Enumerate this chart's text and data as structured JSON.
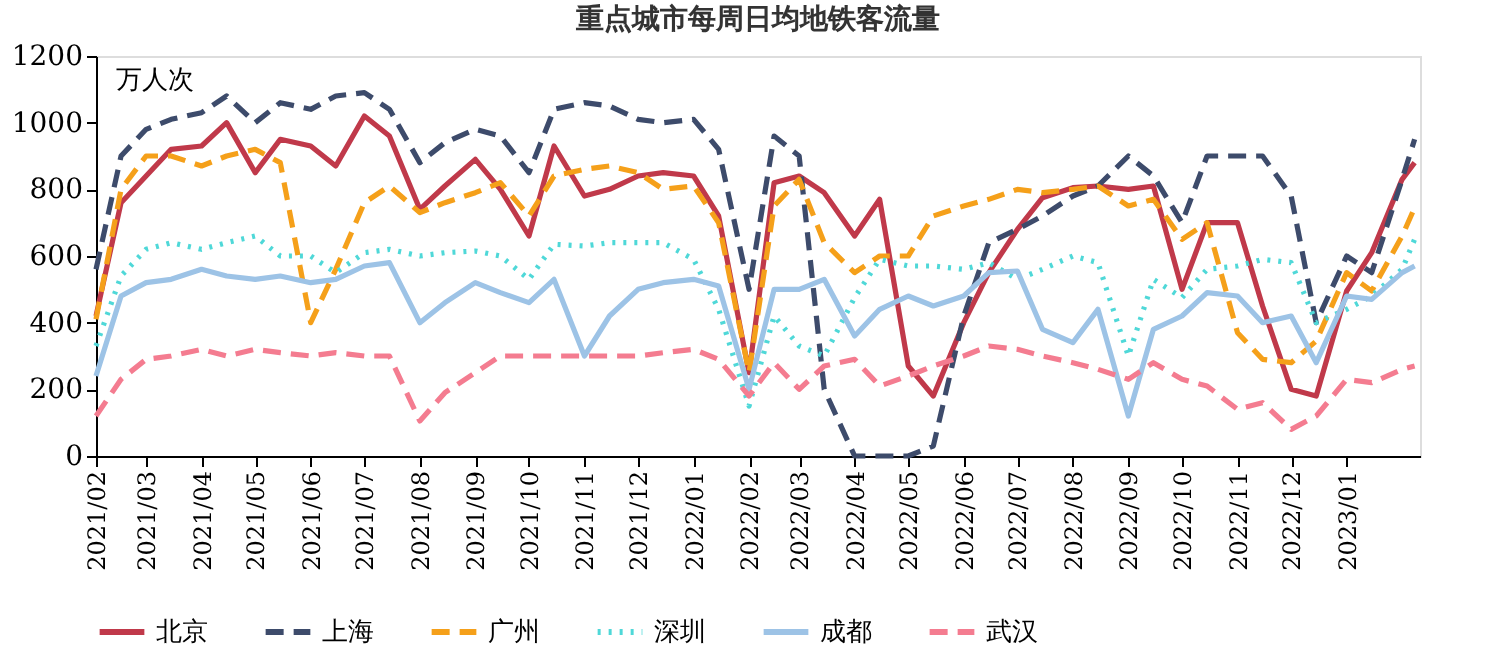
{
  "chart_data": {
    "type": "line",
    "title": "重点城市每周日均地铁客流量",
    "ylabel": "万人次",
    "x": [
      "2021-02-01",
      "2021-02-15",
      "2021-03-01",
      "2021-03-15",
      "2021-04-01",
      "2021-04-15",
      "2021-05-01",
      "2021-05-15",
      "2021-06-01",
      "2021-06-15",
      "2021-07-01",
      "2021-07-15",
      "2021-08-01",
      "2021-08-15",
      "2021-09-01",
      "2021-09-15",
      "2021-10-01",
      "2021-10-15",
      "2021-11-01",
      "2021-11-15",
      "2021-12-01",
      "2021-12-15",
      "2022-01-01",
      "2022-01-15",
      "2022-02-01",
      "2022-02-15",
      "2022-03-01",
      "2022-03-15",
      "2022-04-01",
      "2022-04-15",
      "2022-05-01",
      "2022-05-15",
      "2022-06-01",
      "2022-06-15",
      "2022-07-01",
      "2022-07-15",
      "2022-08-01",
      "2022-08-15",
      "2022-09-01",
      "2022-09-15",
      "2022-10-01",
      "2022-10-15",
      "2022-11-01",
      "2022-11-15",
      "2022-12-01",
      "2022-12-15",
      "2023-01-01",
      "2023-01-15",
      "2023-02-01",
      "2023-02-08"
    ],
    "series": [
      {
        "name": "北京",
        "color": "#c0394a",
        "line_style": "solid",
        "values": [
          420,
          760,
          840,
          920,
          930,
          1000,
          850,
          950,
          930,
          870,
          1020,
          960,
          740,
          810,
          890,
          800,
          660,
          930,
          780,
          800,
          840,
          850,
          840,
          720,
          250,
          820,
          840,
          790,
          660,
          770,
          270,
          180,
          400,
          550,
          680,
          775,
          805,
          810,
          800,
          810,
          500,
          700,
          700,
          450,
          200,
          180,
          495,
          610,
          830,
          880
        ]
      },
      {
        "name": "上海",
        "color": "#3d4b6b",
        "line_style": "dashed",
        "values": [
          560,
          900,
          980,
          1010,
          1030,
          1080,
          1000,
          1060,
          1040,
          1080,
          1090,
          1040,
          880,
          940,
          980,
          960,
          850,
          1040,
          1060,
          1050,
          1010,
          1000,
          1010,
          920,
          500,
          960,
          900,
          200,
          0,
          0,
          0,
          30,
          420,
          640,
          680,
          720,
          780,
          810,
          900,
          840,
          700,
          900,
          900,
          900,
          780,
          400,
          600,
          550,
          830,
          950
        ]
      },
      {
        "name": "广州",
        "color": "#f5a01a",
        "line_style": "dashed",
        "values": [
          410,
          800,
          900,
          900,
          870,
          900,
          920,
          880,
          400,
          560,
          760,
          810,
          730,
          760,
          790,
          820,
          720,
          840,
          860,
          870,
          850,
          800,
          810,
          700,
          250,
          750,
          830,
          640,
          550,
          600,
          600,
          720,
          750,
          770,
          800,
          790,
          800,
          810,
          750,
          770,
          650,
          700,
          370,
          290,
          280,
          345,
          550,
          495,
          660,
          745
        ]
      },
      {
        "name": "深圳",
        "color": "#4fd8d8",
        "line_style": "dotted",
        "values": [
          330,
          540,
          620,
          640,
          620,
          640,
          660,
          600,
          600,
          550,
          610,
          620,
          600,
          610,
          615,
          600,
          530,
          635,
          630,
          640,
          640,
          640,
          590,
          440,
          150,
          420,
          330,
          300,
          475,
          590,
          570,
          570,
          560,
          580,
          530,
          560,
          600,
          580,
          300,
          530,
          475,
          560,
          570,
          590,
          580,
          400,
          440,
          480,
          560,
          650
        ]
      },
      {
        "name": "成都",
        "color": "#9dc3e6",
        "line_style": "solid",
        "values": [
          240,
          480,
          520,
          530,
          560,
          540,
          530,
          540,
          520,
          530,
          570,
          580,
          400,
          460,
          520,
          490,
          460,
          530,
          300,
          420,
          500,
          520,
          530,
          510,
          200,
          500,
          500,
          530,
          360,
          440,
          480,
          450,
          480,
          550,
          555,
          380,
          340,
          440,
          120,
          380,
          420,
          490,
          480,
          400,
          420,
          280,
          480,
          470,
          550,
          570
        ]
      },
      {
        "name": "武汉",
        "color": "#f47c90",
        "line_style": "dashed",
        "values": [
          120,
          230,
          290,
          300,
          320,
          300,
          320,
          310,
          300,
          310,
          300,
          300,
          105,
          190,
          250,
          300,
          300,
          300,
          300,
          300,
          300,
          310,
          320,
          290,
          180,
          280,
          200,
          270,
          290,
          210,
          240,
          270,
          300,
          330,
          320,
          300,
          280,
          260,
          230,
          280,
          230,
          210,
          140,
          160,
          80,
          120,
          230,
          220,
          260,
          270
        ]
      }
    ],
    "xlim": [
      "2021-02-01",
      "2023-02-11"
    ],
    "xticks": [
      {
        "value": "2021-02",
        "label": "2021/02"
      },
      {
        "value": "2021-03",
        "label": "2021/03"
      },
      {
        "value": "2021-04",
        "label": "2021/04"
      },
      {
        "value": "2021-05",
        "label": "2021/05"
      },
      {
        "value": "2021-06",
        "label": "2021/06"
      },
      {
        "value": "2021-07",
        "label": "2021/07"
      },
      {
        "value": "2021-08",
        "label": "2021/08"
      },
      {
        "value": "2021-09",
        "label": "2021/09"
      },
      {
        "value": "2021-10",
        "label": "2021/10"
      },
      {
        "value": "2021-11",
        "label": "2021/11"
      },
      {
        "value": "2021-12",
        "label": "2021/12"
      },
      {
        "value": "2022-01",
        "label": "2022/01"
      },
      {
        "value": "2022-02",
        "label": "2022/02"
      },
      {
        "value": "2022-03",
        "label": "2022/03"
      },
      {
        "value": "2022-04",
        "label": "2022/04"
      },
      {
        "value": "2022-05",
        "label": "2022/05"
      },
      {
        "value": "2022-06",
        "label": "2022/06"
      },
      {
        "value": "2022-07",
        "label": "2022/07"
      },
      {
        "value": "2022-08",
        "label": "2022/08"
      },
      {
        "value": "2022-09",
        "label": "2022/09"
      },
      {
        "value": "2022-10",
        "label": "2022/10"
      },
      {
        "value": "2022-11",
        "label": "2022/11"
      },
      {
        "value": "2022-12",
        "label": "2022/12"
      },
      {
        "value": "2023-01",
        "label": "2023/01"
      }
    ],
    "ylim": [
      0,
      1200
    ],
    "yticks": [
      0,
      200,
      400,
      600,
      800,
      1000,
      1200
    ],
    "grid": false,
    "legend": "bottom",
    "marker": "none"
  }
}
